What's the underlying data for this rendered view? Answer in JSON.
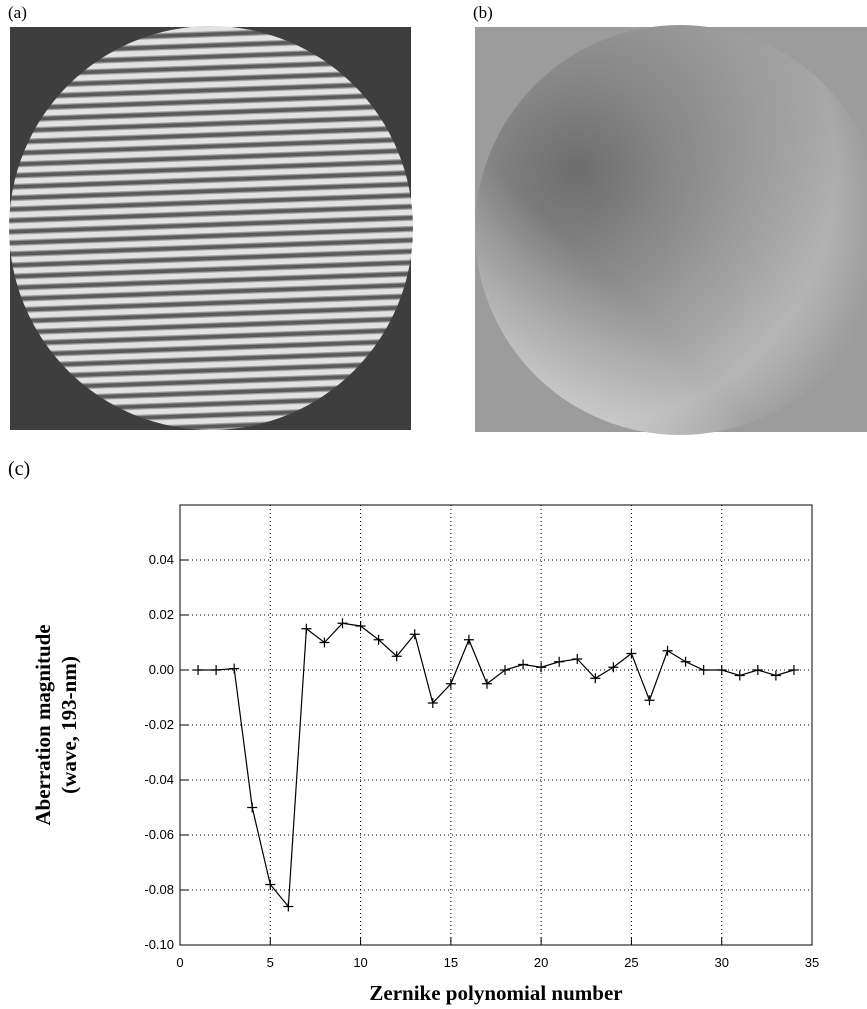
{
  "panels": {
    "a": "(a)",
    "b": "(b)",
    "c": "(c)"
  },
  "chart_data": {
    "type": "line",
    "xlabel": "Zernike polynomial number",
    "ylabel": [
      "Aberration magnitude",
      "(wave, 193-nm)"
    ],
    "x": [
      1,
      2,
      3,
      4,
      5,
      6,
      7,
      8,
      9,
      10,
      11,
      12,
      13,
      14,
      15,
      16,
      17,
      18,
      19,
      20,
      21,
      22,
      23,
      24,
      25,
      26,
      27,
      28,
      29,
      30,
      31,
      32,
      33,
      34
    ],
    "values": [
      0,
      0,
      0.0005,
      -0.05,
      -0.078,
      -0.086,
      0.015,
      0.01,
      0.017,
      0.016,
      0.011,
      0.005,
      0.013,
      -0.012,
      -0.005,
      0.011,
      -0.005,
      0,
      0.002,
      0.001,
      0.003,
      0.004,
      -0.003,
      0.001,
      0.006,
      -0.011,
      0.007,
      0.003,
      0,
      0,
      -0.002,
      0,
      -0.002,
      0
    ],
    "color": "#000000",
    "xlim": [
      0,
      35
    ],
    "xticks": [
      0,
      5,
      10,
      15,
      20,
      25,
      30,
      35
    ],
    "ylim": [
      -0.1,
      0.06
    ],
    "yticks": [
      {
        "value": -0.1,
        "label": "-0.10"
      },
      -0.08,
      -0.06,
      -0.04,
      -0.02,
      {
        "value": 0,
        "label": "0.00"
      },
      0.02,
      0.04
    ],
    "grid": true
  }
}
